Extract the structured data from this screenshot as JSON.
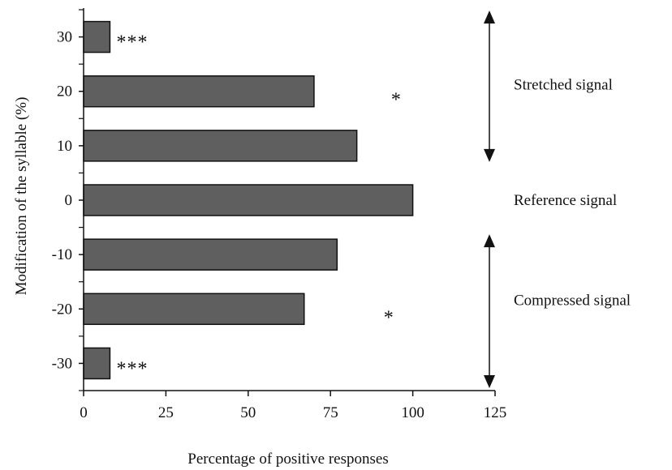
{
  "chart_data": {
    "type": "bar",
    "orientation": "horizontal",
    "categories": [
      "30",
      "20",
      "10",
      "0",
      "-10",
      "-20",
      "-30"
    ],
    "values": [
      8,
      70,
      83,
      100,
      77,
      67,
      8
    ],
    "xlabel": "Percentage of positive responses",
    "ylabel": "Modification of the syllable (%)",
    "xlim": [
      0,
      125
    ],
    "xticks": [
      "0",
      "25",
      "50",
      "75",
      "100",
      "125"
    ],
    "grid": false,
    "legend": "none",
    "bar_color": "#5f5f5f",
    "significance": [
      {
        "category": "30",
        "label": "***"
      },
      {
        "category": "20",
        "label": "*"
      },
      {
        "category": "-20",
        "label": "*"
      },
      {
        "category": "-30",
        "label": "***"
      }
    ],
    "groups": [
      {
        "label": "Stretched signal",
        "range": [
          "30",
          "10"
        ]
      },
      {
        "label": "Reference signal",
        "range": [
          "0",
          "0"
        ]
      },
      {
        "label": "Compressed signal",
        "range": [
          "-10",
          "-30"
        ]
      }
    ]
  }
}
